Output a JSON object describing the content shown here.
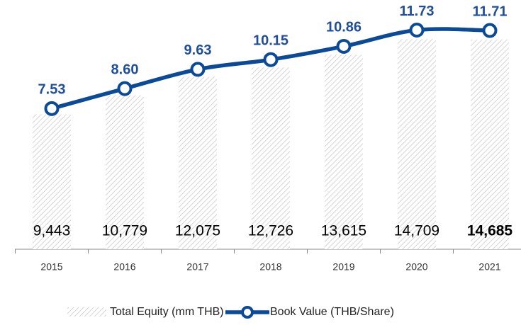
{
  "chart_data": {
    "type": "bar+line",
    "categories": [
      "2015",
      "2016",
      "2017",
      "2018",
      "2019",
      "2020",
      "2021"
    ],
    "series": [
      {
        "name": "Total Equity (mm THB)",
        "type": "bar",
        "color": "#b8b8b8",
        "values": [
          9443,
          10779,
          12075,
          12726,
          13615,
          14709,
          14685
        ],
        "value_labels": [
          "9,443",
          "10,779",
          "12,075",
          "12,726",
          "13,615",
          "14,709",
          "14,685"
        ]
      },
      {
        "name": "Book Value (THB/Share)",
        "type": "line",
        "axis": "y2",
        "color": "#0b4a98",
        "values": [
          7.53,
          8.6,
          9.63,
          10.15,
          10.86,
          11.73,
          11.71
        ],
        "value_labels": [
          "7.53",
          "8.60",
          "9.63",
          "10.15",
          "10.86",
          "11.73",
          "11.71"
        ]
      }
    ],
    "ylim": [
      0,
      17000
    ],
    "y2lim": [
      0,
      13
    ],
    "legend": "bottom"
  }
}
